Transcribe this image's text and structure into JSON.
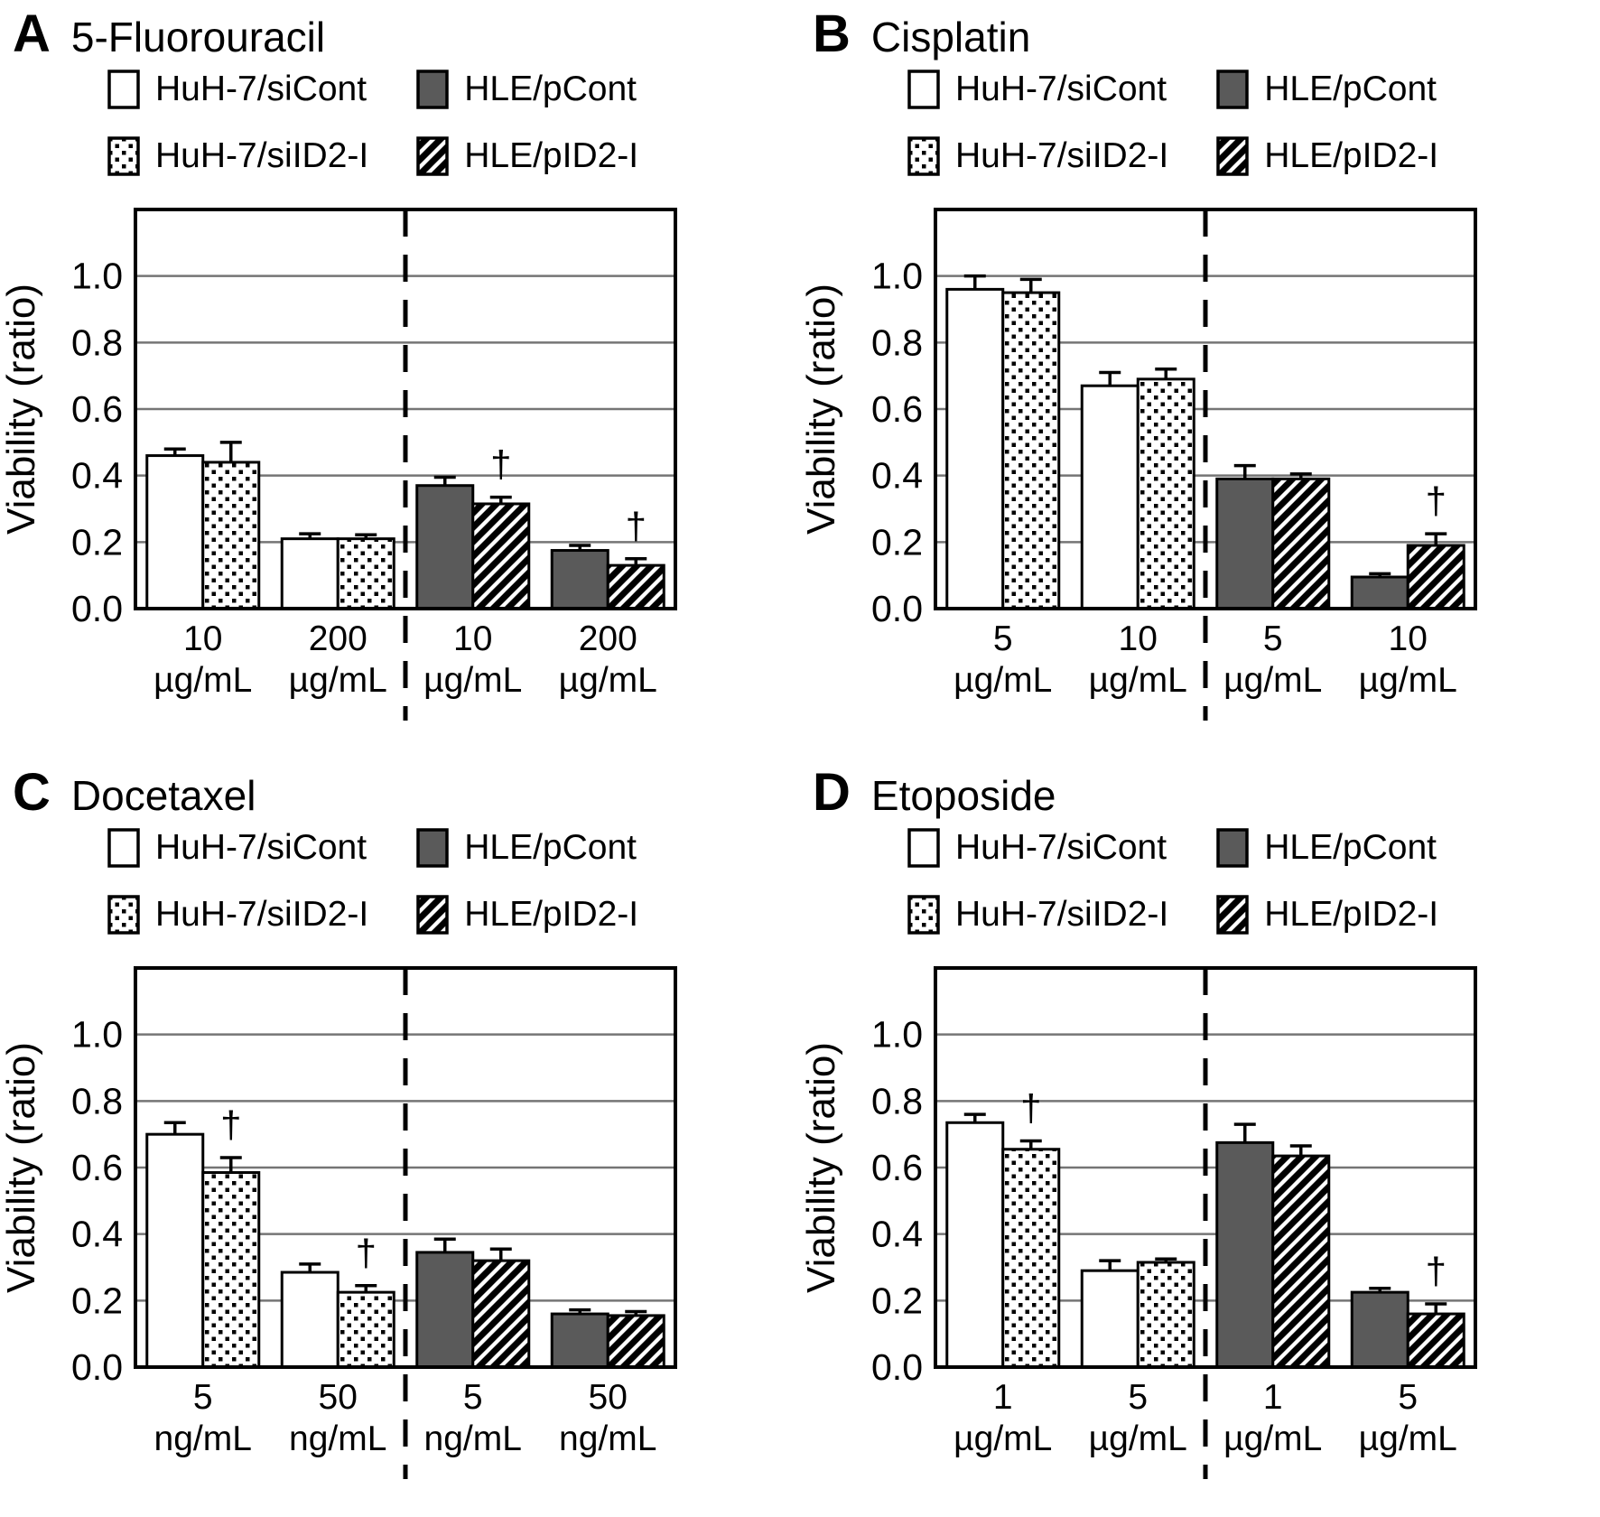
{
  "figure": {
    "dagger_symbol": "†",
    "colors": {
      "background": "#ffffff",
      "bar_white": "#ffffff",
      "bar_gray": "#5a5a5a",
      "bar_outline": "#000000",
      "grid_line": "#757575",
      "separator_line": "#000000"
    },
    "legend": {
      "items": [
        {
          "label": "HuH-7/siCont",
          "swatch": "white"
        },
        {
          "label": "HLE/pCont",
          "swatch": "gray"
        },
        {
          "label": "HuH-7/siID2-I",
          "swatch": "dotted"
        },
        {
          "label": "HLE/pID2-I",
          "swatch": "hatched"
        }
      ]
    }
  },
  "chart_data": [
    {
      "type": "bar",
      "panel": "A",
      "title": "5-Fluorouracil",
      "ylabel": "Viability (ratio)",
      "ylim": [
        0,
        1.2
      ],
      "yticks": [
        0,
        0.2,
        0.4,
        0.6,
        0.8,
        1.0
      ],
      "ytick_labels": [
        "0.0",
        "0.2",
        "0.4",
        "0.6",
        "0.8",
        "1.0"
      ],
      "grid": true,
      "legend_position": "top",
      "separator": "dashed vertical line between HuH-7 groups and HLE groups",
      "groups": [
        {
          "x_tick": [
            "10",
            "µg/mL"
          ],
          "bars": [
            {
              "series": "HuH-7/siCont",
              "style": "white",
              "value": 0.46,
              "err": 0.02,
              "dagger": false
            },
            {
              "series": "HuH-7/siID2-I",
              "style": "dotted",
              "value": 0.44,
              "err": 0.06,
              "dagger": false
            }
          ]
        },
        {
          "x_tick": [
            "200",
            "µg/mL"
          ],
          "bars": [
            {
              "series": "HuH-7/siCont",
              "style": "white",
              "value": 0.21,
              "err": 0.015,
              "dagger": false
            },
            {
              "series": "HuH-7/siID2-I",
              "style": "dotted",
              "value": 0.21,
              "err": 0.012,
              "dagger": false
            }
          ]
        },
        {
          "x_tick": [
            "10",
            "µg/mL"
          ],
          "bars": [
            {
              "series": "HLE/pCont",
              "style": "gray",
              "value": 0.37,
              "err": 0.025,
              "dagger": false
            },
            {
              "series": "HLE/pID2-I",
              "style": "hatched",
              "value": 0.315,
              "err": 0.02,
              "dagger": true
            }
          ]
        },
        {
          "x_tick": [
            "200",
            "µg/mL"
          ],
          "bars": [
            {
              "series": "HLE/pCont",
              "style": "gray",
              "value": 0.175,
              "err": 0.015,
              "dagger": false
            },
            {
              "series": "HLE/pID2-I",
              "style": "hatched",
              "value": 0.13,
              "err": 0.02,
              "dagger": true
            }
          ]
        }
      ]
    },
    {
      "type": "bar",
      "panel": "B",
      "title": "Cisplatin",
      "ylabel": "Viability (ratio)",
      "ylim": [
        0,
        1.2
      ],
      "yticks": [
        0,
        0.2,
        0.4,
        0.6,
        0.8,
        1.0
      ],
      "ytick_labels": [
        "0.0",
        "0.2",
        "0.4",
        "0.6",
        "0.8",
        "1.0"
      ],
      "grid": true,
      "legend_position": "top",
      "separator": "dashed vertical line between HuH-7 groups and HLE groups",
      "groups": [
        {
          "x_tick": [
            "5",
            "µg/mL"
          ],
          "bars": [
            {
              "series": "HuH-7/siCont",
              "style": "white",
              "value": 0.96,
              "err": 0.04,
              "dagger": false
            },
            {
              "series": "HuH-7/siID2-I",
              "style": "dotted",
              "value": 0.95,
              "err": 0.04,
              "dagger": false
            }
          ]
        },
        {
          "x_tick": [
            "10",
            "µg/mL"
          ],
          "bars": [
            {
              "series": "HuH-7/siCont",
              "style": "white",
              "value": 0.67,
              "err": 0.04,
              "dagger": false
            },
            {
              "series": "HuH-7/siID2-I",
              "style": "dotted",
              "value": 0.69,
              "err": 0.03,
              "dagger": false
            }
          ]
        },
        {
          "x_tick": [
            "5",
            "µg/mL"
          ],
          "bars": [
            {
              "series": "HLE/pCont",
              "style": "gray",
              "value": 0.39,
              "err": 0.04,
              "dagger": false
            },
            {
              "series": "HLE/pID2-I",
              "style": "hatched",
              "value": 0.39,
              "err": 0.015,
              "dagger": false
            }
          ]
        },
        {
          "x_tick": [
            "10",
            "µg/mL"
          ],
          "bars": [
            {
              "series": "HLE/pCont",
              "style": "gray",
              "value": 0.095,
              "err": 0.01,
              "dagger": false
            },
            {
              "series": "HLE/pID2-I",
              "style": "hatched",
              "value": 0.19,
              "err": 0.035,
              "dagger": true
            }
          ]
        }
      ]
    },
    {
      "type": "bar",
      "panel": "C",
      "title": "Docetaxel",
      "ylabel": "Viability (ratio)",
      "ylim": [
        0,
        1.2
      ],
      "yticks": [
        0,
        0.2,
        0.4,
        0.6,
        0.8,
        1.0
      ],
      "ytick_labels": [
        "0.0",
        "0.2",
        "0.4",
        "0.6",
        "0.8",
        "1.0"
      ],
      "grid": true,
      "legend_position": "top",
      "separator": "dashed vertical line between HuH-7 groups and HLE groups",
      "groups": [
        {
          "x_tick": [
            "5",
            "ng/mL"
          ],
          "bars": [
            {
              "series": "HuH-7/siCont",
              "style": "white",
              "value": 0.7,
              "err": 0.035,
              "dagger": false
            },
            {
              "series": "HuH-7/siID2-I",
              "style": "dotted",
              "value": 0.585,
              "err": 0.045,
              "dagger": true
            }
          ]
        },
        {
          "x_tick": [
            "50",
            "ng/mL"
          ],
          "bars": [
            {
              "series": "HuH-7/siCont",
              "style": "white",
              "value": 0.285,
              "err": 0.025,
              "dagger": false
            },
            {
              "series": "HuH-7/siID2-I",
              "style": "dotted",
              "value": 0.225,
              "err": 0.02,
              "dagger": true
            }
          ]
        },
        {
          "x_tick": [
            "5",
            "ng/mL"
          ],
          "bars": [
            {
              "series": "HLE/pCont",
              "style": "gray",
              "value": 0.345,
              "err": 0.04,
              "dagger": false
            },
            {
              "series": "HLE/pID2-I",
              "style": "hatched",
              "value": 0.32,
              "err": 0.035,
              "dagger": false
            }
          ]
        },
        {
          "x_tick": [
            "50",
            "ng/mL"
          ],
          "bars": [
            {
              "series": "HLE/pCont",
              "style": "gray",
              "value": 0.16,
              "err": 0.012,
              "dagger": false
            },
            {
              "series": "HLE/pID2-I",
              "style": "hatched",
              "value": 0.155,
              "err": 0.012,
              "dagger": false
            }
          ]
        }
      ]
    },
    {
      "type": "bar",
      "panel": "D",
      "title": "Etoposide",
      "ylabel": "Viability (ratio)",
      "ylim": [
        0,
        1.2
      ],
      "yticks": [
        0,
        0.2,
        0.4,
        0.6,
        0.8,
        1.0
      ],
      "ytick_labels": [
        "0.0",
        "0.2",
        "0.4",
        "0.6",
        "0.8",
        "1.0"
      ],
      "grid": true,
      "legend_position": "top",
      "separator": "dashed vertical line between HuH-7 groups and HLE groups",
      "groups": [
        {
          "x_tick": [
            "1",
            "µg/mL"
          ],
          "bars": [
            {
              "series": "HuH-7/siCont",
              "style": "white",
              "value": 0.735,
              "err": 0.025,
              "dagger": false
            },
            {
              "series": "HuH-7/siID2-I",
              "style": "dotted",
              "value": 0.655,
              "err": 0.025,
              "dagger": true
            }
          ]
        },
        {
          "x_tick": [
            "5",
            "µg/mL"
          ],
          "bars": [
            {
              "series": "HuH-7/siCont",
              "style": "white",
              "value": 0.29,
              "err": 0.03,
              "dagger": false
            },
            {
              "series": "HuH-7/siID2-I",
              "style": "dotted",
              "value": 0.315,
              "err": 0.01,
              "dagger": false
            }
          ]
        },
        {
          "x_tick": [
            "1",
            "µg/mL"
          ],
          "bars": [
            {
              "series": "HLE/pCont",
              "style": "gray",
              "value": 0.675,
              "err": 0.055,
              "dagger": false
            },
            {
              "series": "HLE/pID2-I",
              "style": "hatched",
              "value": 0.635,
              "err": 0.03,
              "dagger": false
            }
          ]
        },
        {
          "x_tick": [
            "5",
            "µg/mL"
          ],
          "bars": [
            {
              "series": "HLE/pCont",
              "style": "gray",
              "value": 0.225,
              "err": 0.012,
              "dagger": false
            },
            {
              "series": "HLE/pID2-I",
              "style": "hatched",
              "value": 0.16,
              "err": 0.03,
              "dagger": true
            }
          ]
        }
      ]
    }
  ]
}
